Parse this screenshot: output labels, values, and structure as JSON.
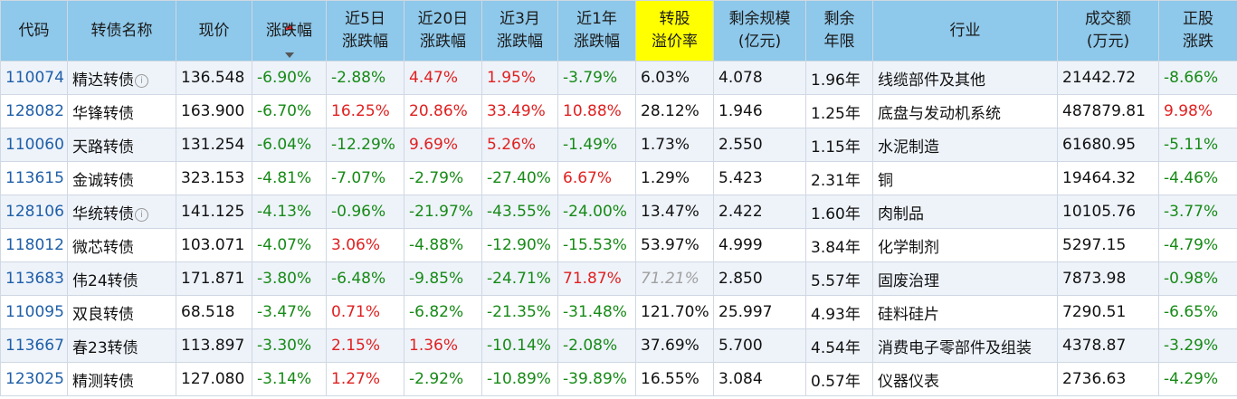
{
  "columns": {
    "code": "代码",
    "name": "转债名称",
    "price": "现价",
    "change": "涨跌幅",
    "chg5d": [
      "近5日",
      "涨跌幅"
    ],
    "chg20d": [
      "近20日",
      "涨跌幅"
    ],
    "chg3m": [
      "近3月",
      "涨跌幅"
    ],
    "chg1y": [
      "近1年",
      "涨跌幅"
    ],
    "premium": [
      "转股",
      "溢价率"
    ],
    "scale": [
      "剩余规模",
      "(亿元)"
    ],
    "years": [
      "剩余",
      "年限"
    ],
    "industry": "行业",
    "volume": [
      "成交额",
      "(万元)"
    ],
    "stock_chg": [
      "正股",
      "涨跌"
    ]
  },
  "rows": [
    {
      "code": "110074",
      "name": "精达转债",
      "info": true,
      "price": "136.548",
      "change": "-6.90%",
      "chg5d": "-2.88%",
      "chg20d": "4.47%",
      "chg3m": "1.95%",
      "chg1y": "-3.79%",
      "premium": "6.03%",
      "scale": "4.078",
      "years": "1.96年",
      "industry": "线缆部件及其他",
      "volume": "21442.72",
      "stock_chg": "-8.66%"
    },
    {
      "code": "128082",
      "name": "华锋转债",
      "info": false,
      "price": "163.900",
      "change": "-6.70%",
      "chg5d": "16.25%",
      "chg20d": "20.86%",
      "chg3m": "33.49%",
      "chg1y": "10.88%",
      "premium": "28.12%",
      "scale": "1.946",
      "years": "1.25年",
      "industry": "底盘与发动机系统",
      "volume": "487879.81",
      "stock_chg": "9.98%"
    },
    {
      "code": "110060",
      "name": "天路转债",
      "info": false,
      "price": "131.254",
      "change": "-6.04%",
      "chg5d": "-12.29%",
      "chg20d": "9.69%",
      "chg3m": "5.26%",
      "chg1y": "-1.49%",
      "premium": "1.73%",
      "scale": "2.550",
      "years": "1.15年",
      "industry": "水泥制造",
      "volume": "61680.95",
      "stock_chg": "-5.11%"
    },
    {
      "code": "113615",
      "name": "金诚转债",
      "info": false,
      "price": "323.153",
      "change": "-4.81%",
      "chg5d": "-7.07%",
      "chg20d": "-2.79%",
      "chg3m": "-27.40%",
      "chg1y": "6.67%",
      "premium": "1.29%",
      "scale": "5.423",
      "years": "2.31年",
      "industry": "铜",
      "volume": "19464.32",
      "stock_chg": "-4.46%"
    },
    {
      "code": "128106",
      "name": "华统转债",
      "info": true,
      "price": "141.125",
      "change": "-4.13%",
      "chg5d": "-0.96%",
      "chg20d": "-21.97%",
      "chg3m": "-43.55%",
      "chg1y": "-24.00%",
      "premium": "13.47%",
      "scale": "2.422",
      "years": "1.60年",
      "industry": "肉制品",
      "volume": "10105.76",
      "stock_chg": "-3.77%"
    },
    {
      "code": "118012",
      "name": "微芯转债",
      "info": false,
      "price": "103.071",
      "change": "-4.07%",
      "chg5d": "3.06%",
      "chg20d": "-4.88%",
      "chg3m": "-12.90%",
      "chg1y": "-15.53%",
      "premium": "53.97%",
      "scale": "4.999",
      "years": "3.84年",
      "industry": "化学制剂",
      "volume": "5297.15",
      "stock_chg": "-4.79%"
    },
    {
      "code": "113683",
      "name": "伟24转债",
      "info": false,
      "price": "171.871",
      "change": "-3.80%",
      "chg5d": "-6.48%",
      "chg20d": "-9.85%",
      "chg3m": "-24.71%",
      "chg1y": "71.87%",
      "premium": "71.21%",
      "scale": "2.850",
      "years": "5.57年",
      "industry": "固废治理",
      "volume": "7873.98",
      "stock_chg": "-0.98%"
    },
    {
      "code": "110095",
      "name": "双良转债",
      "info": false,
      "price": "68.518",
      "change": "-3.47%",
      "chg5d": "0.71%",
      "chg20d": "-6.82%",
      "chg3m": "-21.35%",
      "chg1y": "-31.48%",
      "premium": "121.70%",
      "scale": "25.997",
      "years": "4.93年",
      "industry": "硅料硅片",
      "volume": "7290.51",
      "stock_chg": "-6.65%"
    },
    {
      "code": "113667",
      "name": "春23转债",
      "info": false,
      "price": "113.897",
      "change": "-3.30%",
      "chg5d": "2.15%",
      "chg20d": "1.36%",
      "chg3m": "-10.14%",
      "chg1y": "-2.08%",
      "premium": "37.69%",
      "scale": "5.700",
      "years": "4.54年",
      "industry": "消费电子零部件及组装",
      "volume": "4378.87",
      "stock_chg": "-3.29%"
    },
    {
      "code": "123025",
      "name": "精测转债",
      "info": false,
      "price": "127.080",
      "change": "-3.14%",
      "chg5d": "1.27%",
      "chg20d": "-2.92%",
      "chg3m": "-10.89%",
      "chg1y": "-39.89%",
      "premium": "16.55%",
      "scale": "3.084",
      "years": "0.57年",
      "industry": "仪器仪表",
      "volume": "2736.63",
      "stock_chg": "-4.29%"
    }
  ],
  "colors": {
    "up": "#e02020",
    "down": "#168a16",
    "header": "#8ec8ea",
    "highlight": "#ffff00",
    "code_link": "#1f5fa8"
  },
  "icons": {
    "info": "info-circle-icon",
    "sort": "sort-desc-icon"
  }
}
